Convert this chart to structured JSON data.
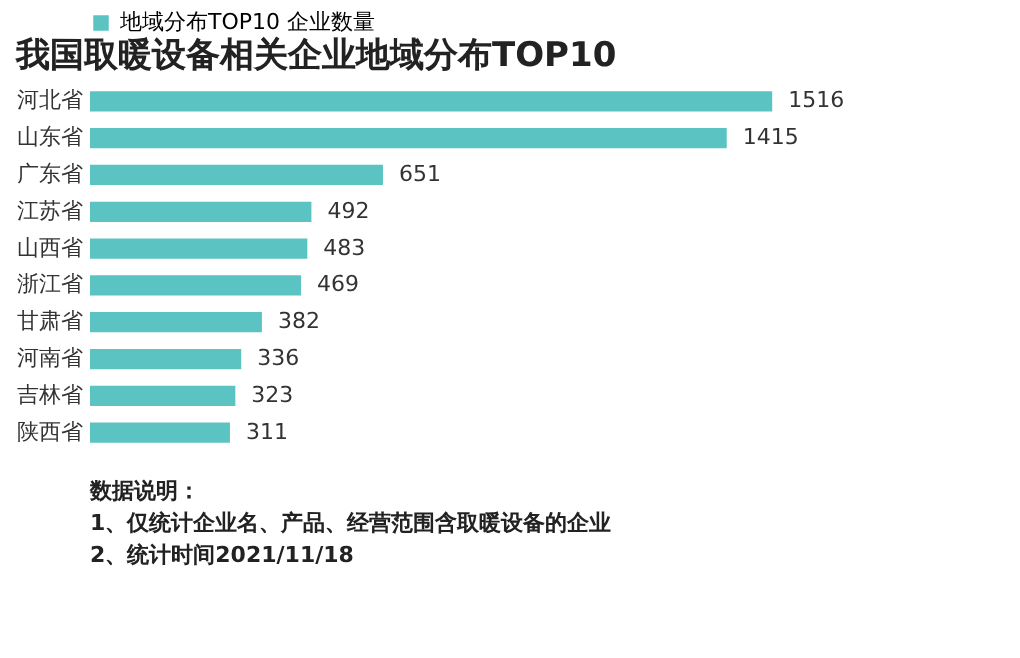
{
  "chart_data": {
    "type": "bar",
    "orientation": "horizontal",
    "title": "我国取暖设备相关企业地域分布TOP10",
    "categories": [
      "河北省",
      "山东省",
      "广东省",
      "江苏省",
      "山西省",
      "浙江省",
      "甘肃省",
      "河南省",
      "吉林省",
      "陕西省"
    ],
    "series": [
      {
        "name": "地域分布TOP10 企业数量",
        "color": "#5cc3c3",
        "values": [
          1516,
          1415,
          651,
          492,
          483,
          469,
          382,
          336,
          323,
          311
        ]
      }
    ],
    "data_labels": true,
    "legend": "top left",
    "grid": false,
    "annotations": [
      "数据说明：",
      "1、仅统计企业名、产品、经营范围含取暖设备的企业",
      "2、统计时间2021/11/18"
    ]
  }
}
